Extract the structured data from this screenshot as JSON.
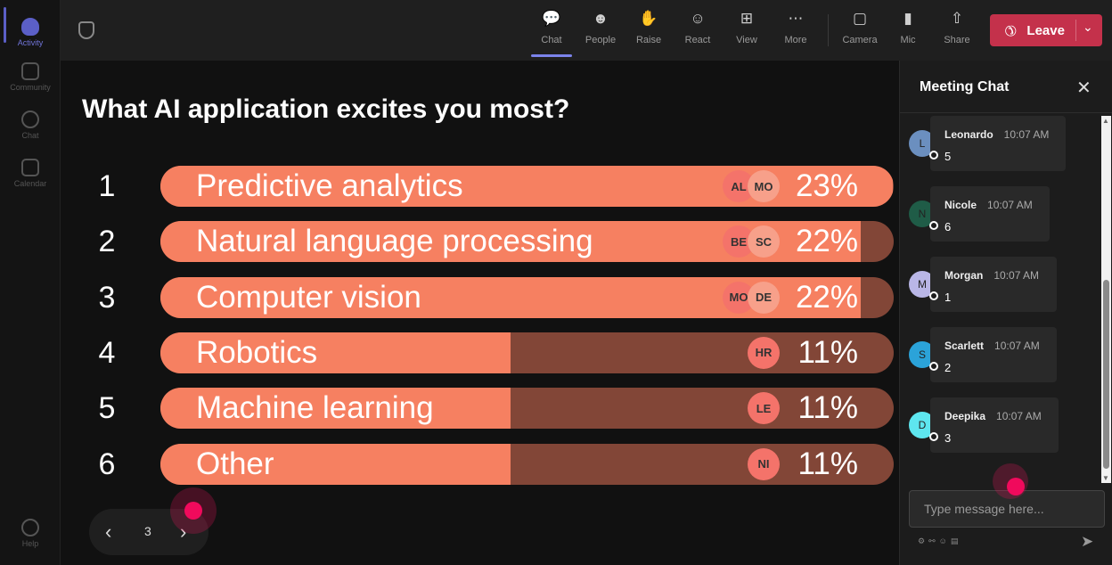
{
  "rail": {
    "items": [
      {
        "label": "Activity"
      },
      {
        "label": "Community"
      },
      {
        "label": "Chat"
      },
      {
        "label": "Calendar"
      },
      {
        "label": "Help"
      }
    ]
  },
  "toolbar": {
    "buttons": [
      {
        "label": "Chat",
        "icon": "chat-icon"
      },
      {
        "label": "People",
        "icon": "people-icon"
      },
      {
        "label": "Raise",
        "icon": "hand-icon"
      },
      {
        "label": "React",
        "icon": "emoji-icon"
      },
      {
        "label": "View",
        "icon": "grid-icon"
      },
      {
        "label": "More",
        "icon": "more-icon"
      },
      {
        "label": "Camera",
        "icon": "camera-off-icon"
      },
      {
        "label": "Mic",
        "icon": "mic-icon"
      },
      {
        "label": "Share",
        "icon": "share-icon"
      }
    ],
    "leave_label": "Leave"
  },
  "poll": {
    "question": "What AI application excites you most?",
    "options": [
      {
        "rank": "1",
        "label": "Predictive analytics",
        "percent": "23%",
        "share": 0.23,
        "voters": [
          "AL",
          "MO"
        ]
      },
      {
        "rank": "2",
        "label": "Natural language processing",
        "percent": "22%",
        "share": 0.22,
        "voters": [
          "BE",
          "SC"
        ]
      },
      {
        "rank": "3",
        "label": "Computer vision",
        "percent": "22%",
        "share": 0.22,
        "voters": [
          "MO",
          "DE"
        ]
      },
      {
        "rank": "4",
        "label": "Robotics",
        "percent": "11%",
        "share": 0.11,
        "voters": [
          "HR"
        ]
      },
      {
        "rank": "5",
        "label": "Machine learning",
        "percent": "11%",
        "share": 0.11,
        "voters": [
          "LE"
        ]
      },
      {
        "rank": "6",
        "label": "Other",
        "percent": "11%",
        "share": 0.11,
        "voters": [
          "NI"
        ]
      }
    ],
    "page": "3"
  },
  "chat": {
    "title": "Meeting Chat",
    "messages": [
      {
        "initial": "L",
        "name": "Leonardo",
        "time": "10:07 AM",
        "text": "5",
        "color": "#6b8fbf"
      },
      {
        "initial": "N",
        "name": "Nicole",
        "time": "10:07 AM",
        "text": "6",
        "color": "#1f5c47"
      },
      {
        "initial": "M",
        "name": "Morgan",
        "time": "10:07 AM",
        "text": "1",
        "color": "#b9b6e6"
      },
      {
        "initial": "S",
        "name": "Scarlett",
        "time": "10:07 AM",
        "text": "2",
        "color": "#2ba3d9"
      },
      {
        "initial": "D",
        "name": "Deepika",
        "time": "10:07 AM",
        "text": "3",
        "color": "#5ee6ef"
      }
    ],
    "input_placeholder": "Type message here..."
  },
  "colors": {
    "bar_fill": "#f68061",
    "bar_track": "#824637",
    "leave": "#c4314b",
    "accent": "#5b5fc7"
  }
}
